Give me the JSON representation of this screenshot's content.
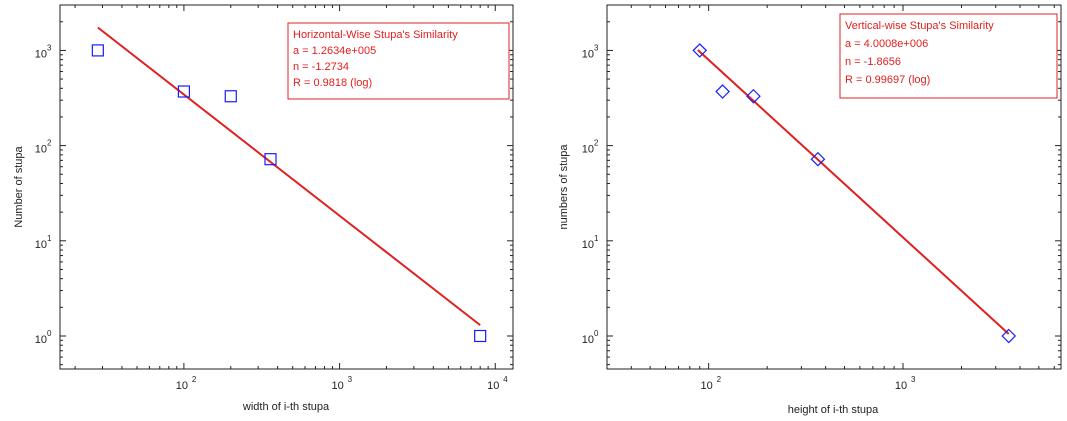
{
  "chart_data": [
    {
      "type": "scatter",
      "scale": "log-log",
      "xlabel": "width of i-th stupa",
      "ylabel": "Number of stupa",
      "xlim": [
        16,
        13000
      ],
      "ylim": [
        0.45,
        3000
      ],
      "x_ticks": [
        {
          "base": "10",
          "exp": "2",
          "value": 100
        },
        {
          "base": "10",
          "exp": "3",
          "value": 1000
        },
        {
          "base": "10",
          "exp": "4",
          "value": 10000
        }
      ],
      "y_ticks": [
        {
          "base": "10",
          "exp": "0",
          "value": 1
        },
        {
          "base": "10",
          "exp": "1",
          "value": 10
        },
        {
          "base": "10",
          "exp": "2",
          "value": 100
        },
        {
          "base": "10",
          "exp": "3",
          "value": 1000
        }
      ],
      "marker": "square",
      "marker_color": "#1a1aff",
      "line_color": "#e02020",
      "points": [
        {
          "x": 28,
          "y": 1000
        },
        {
          "x": 100,
          "y": 370
        },
        {
          "x": 200,
          "y": 330
        },
        {
          "x": 360,
          "y": 72
        },
        {
          "x": 8000,
          "y": 1
        }
      ],
      "fit": {
        "x": [
          28,
          8000
        ],
        "y": [
          1740,
          1.3
        ]
      },
      "legend_lines": [
        "Horizontal-Wise Stupa's Similarity",
        "a = 1.2634e+005",
        "n = -1.2734",
        "R = 0.9818  (log)"
      ],
      "legend_position": "top-right"
    },
    {
      "type": "scatter",
      "scale": "log-log",
      "xlabel": "height of i-th stupa",
      "ylabel": "numbers of stupa",
      "xlim": [
        30,
        6500
      ],
      "ylim": [
        0.45,
        3000
      ],
      "x_ticks": [
        {
          "base": "10",
          "exp": "2",
          "value": 100
        },
        {
          "base": "10",
          "exp": "3",
          "value": 1000
        }
      ],
      "y_ticks": [
        {
          "base": "10",
          "exp": "0",
          "value": 1
        },
        {
          "base": "10",
          "exp": "1",
          "value": 10
        },
        {
          "base": "10",
          "exp": "2",
          "value": 100
        },
        {
          "base": "10",
          "exp": "3",
          "value": 1000
        }
      ],
      "marker": "diamond",
      "marker_color": "#1a1aff",
      "line_color": "#e02020",
      "points": [
        {
          "x": 90,
          "y": 1000
        },
        {
          "x": 118,
          "y": 370
        },
        {
          "x": 170,
          "y": 330
        },
        {
          "x": 365,
          "y": 72
        },
        {
          "x": 3500,
          "y": 1
        }
      ],
      "fit": {
        "x": [
          88,
          3500
        ],
        "y": [
          1010,
          1.05
        ]
      },
      "legend_lines": [
        "Vertical-wise Stupa's Similarity",
        "a = 4.0008e+006",
        "n = -1.8656",
        "R = 0.99697  (log)"
      ],
      "legend_position": "top-right"
    }
  ]
}
